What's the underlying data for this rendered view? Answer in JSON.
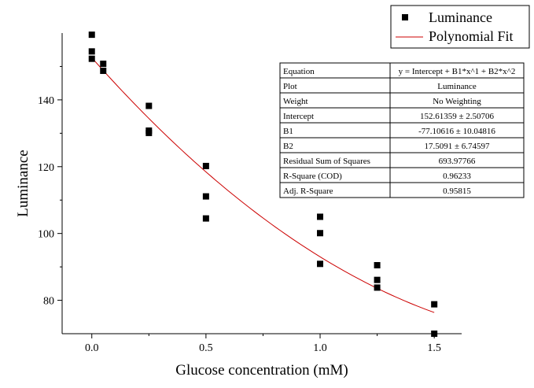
{
  "chart_data": {
    "type": "scatter",
    "xlabel": "Glucose concentration (mM)",
    "ylabel": "Luminance",
    "xlim": [
      -0.13,
      1.62
    ],
    "ylim": [
      70,
      160
    ],
    "xticks": [
      0.0,
      0.5,
      1.0,
      1.5
    ],
    "xtick_labels": [
      "0.0",
      "0.5",
      "1.0",
      "1.5"
    ],
    "yticks": [
      80,
      100,
      120,
      140
    ],
    "ytick_labels": [
      "80",
      "100",
      "120",
      "140"
    ],
    "grid": false,
    "legend_position": "top-right",
    "series": [
      {
        "name": "Luminance",
        "kind": "points",
        "marker": "square",
        "color": "#000000",
        "x": [
          0,
          0,
          0,
          0.05,
          0.05,
          0.25,
          0.25,
          0.25,
          0.5,
          0.5,
          0.5,
          1.0,
          1.0,
          1.0,
          1.25,
          1.25,
          1.25,
          1.5,
          1.5
        ],
        "y": [
          159.5,
          154.5,
          152.3,
          150.8,
          148.7,
          138.2,
          130.8,
          130.1,
          120.2,
          111.1,
          104.5,
          105.0,
          100.1,
          90.9,
          90.5,
          86.1,
          83.8,
          78.8,
          70.0
        ]
      },
      {
        "name": "Polynomial Fit",
        "kind": "curve",
        "color": "#cc0000",
        "equation": {
          "intercept": 152.61359,
          "b1": -77.10616,
          "b2": 17.5091
        },
        "x_range": [
          0,
          1.5
        ]
      }
    ],
    "stats_table": {
      "rows": [
        [
          "Equation",
          "y = Intercept + B1*x^1 + B2*x^2"
        ],
        [
          "Plot",
          "Luminance"
        ],
        [
          "Weight",
          "No Weighting"
        ],
        [
          "Intercept",
          "152.61359 ± 2.50706"
        ],
        [
          "B1",
          "-77.10616 ± 10.04816"
        ],
        [
          "B2",
          "17.5091 ± 6.74597"
        ],
        [
          "Residual Sum of Squares",
          "693.97766"
        ],
        [
          "R-Square (COD)",
          "0.96233"
        ],
        [
          "Adj. R-Square",
          "0.95815"
        ]
      ]
    }
  }
}
